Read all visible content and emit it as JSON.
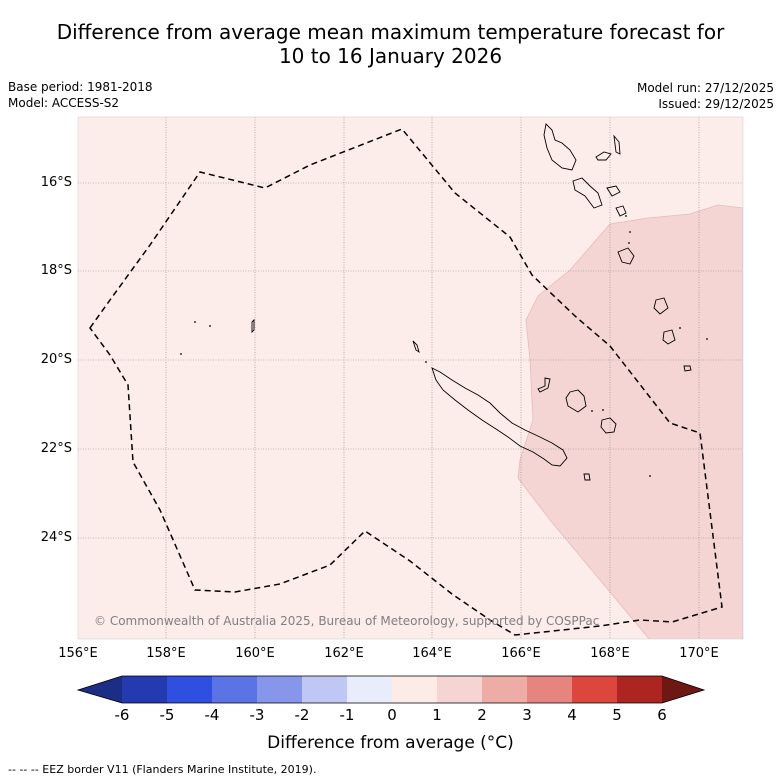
{
  "title": {
    "line1": "Difference from average mean maximum temperature forecast for",
    "line2": "10 to 16 January 2026"
  },
  "meta": {
    "base_period": "Base period: 1981-2018",
    "model": "Model: ACCESS-S2",
    "model_run": "Model run: 27/12/2025",
    "issued": "Issued: 29/12/2025"
  },
  "map": {
    "lat_labels": [
      "16°S",
      "18°S",
      "20°S",
      "22°S",
      "24°S"
    ],
    "lon_labels": [
      "156°E",
      "158°E",
      "160°E",
      "162°E",
      "164°E",
      "166°E",
      "168°E",
      "170°E"
    ],
    "copyright": "© Commonwealth of Australia 2025, Bureau of Meteorology, supported by COSPPac",
    "colors": {
      "category_0_to_1": "#fcecea",
      "category_1_to_2": "#f5d5d4"
    }
  },
  "colorbar": {
    "ticks": [
      "-6",
      "-5",
      "-4",
      "-3",
      "-2",
      "-1",
      "0",
      "1",
      "2",
      "3",
      "4",
      "5",
      "6"
    ],
    "colors": [
      "#1c2d86",
      "#233ab1",
      "#2f4fe0",
      "#5a74e6",
      "#8596eb",
      "#c1c7f5",
      "#e9ecfb",
      "#fdebe8",
      "#f5d5d4",
      "#eeaca7",
      "#e6857d",
      "#dc463c",
      "#ad2520",
      "#6e1814"
    ],
    "label": "Difference from average (°C)"
  },
  "footer": {
    "eez_legend": "--  --  -- EEZ border V11 (Flanders Marine Institute, 2019)."
  }
}
